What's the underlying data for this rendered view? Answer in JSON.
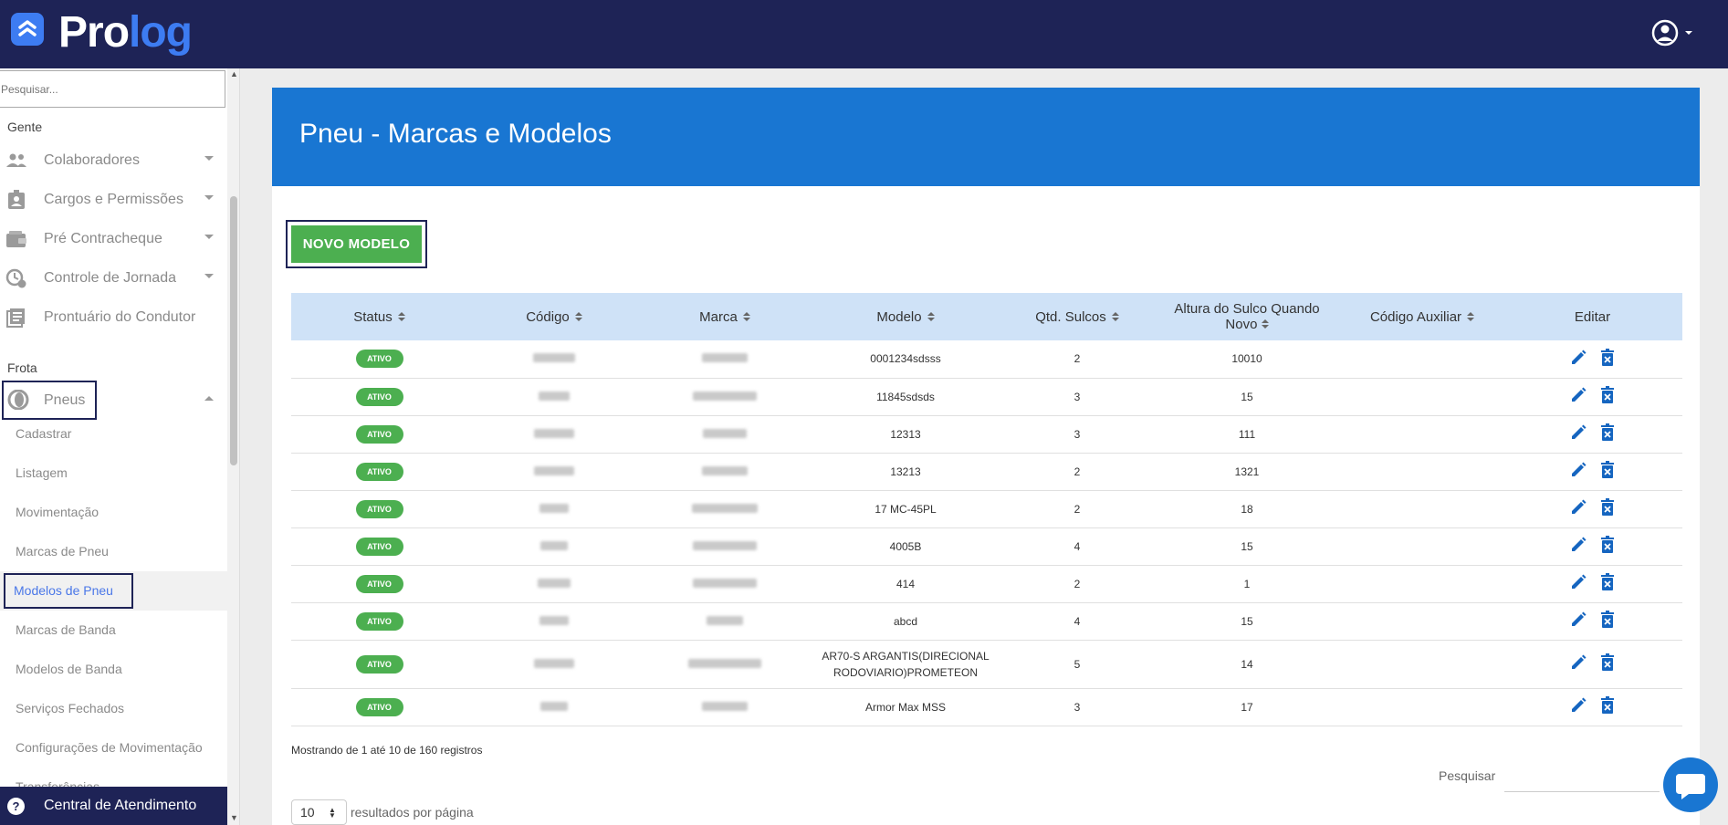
{
  "app": {
    "logo_pro": "Pro",
    "logo_log": "log"
  },
  "sidebar": {
    "search_placeholder": "Pesquisar...",
    "section_gente": "Gente",
    "gente_items": [
      {
        "label": "Colaboradores",
        "icon": "people-icon"
      },
      {
        "label": "Cargos e Permissões",
        "icon": "badge-icon"
      },
      {
        "label": "Pré Contracheque",
        "icon": "wallet-icon"
      },
      {
        "label": "Controle de Jornada",
        "icon": "clock-icon"
      },
      {
        "label": "Prontuário do Condutor",
        "icon": "document-icon"
      }
    ],
    "section_frota": "Frota",
    "pneus_label": "Pneus",
    "pneus_subitems": [
      "Cadastrar",
      "Listagem",
      "Movimentação",
      "Marcas de Pneu",
      "Modelos de Pneu",
      "Marcas de Banda",
      "Modelos de Banda",
      "Serviços Fechados",
      "Configurações de Movimentação",
      "Transferências"
    ],
    "active_subitem": "Modelos de Pneu",
    "help_label": "Central de Atendimento"
  },
  "main": {
    "title": "Pneu - Marcas e Modelos",
    "new_button": "NOVO MODELO",
    "columns": [
      "Status",
      "Código",
      "Marca",
      "Modelo",
      "Qtd. Sulcos",
      "Altura do Sulco Quando Novo",
      "Código Auxiliar",
      "Editar"
    ],
    "status_label": "ATIVO",
    "rows": [
      {
        "modelo": "0001234sdsss",
        "sulcos": "2",
        "altura": "10010"
      },
      {
        "modelo": "11845sdsds",
        "sulcos": "3",
        "altura": "15"
      },
      {
        "modelo": "12313",
        "sulcos": "3",
        "altura": "111"
      },
      {
        "modelo": "13213",
        "sulcos": "2",
        "altura": "1321"
      },
      {
        "modelo": "17 MC-45PL",
        "sulcos": "2",
        "altura": "18"
      },
      {
        "modelo": "4005B",
        "sulcos": "4",
        "altura": "15"
      },
      {
        "modelo": "414",
        "sulcos": "2",
        "altura": "1"
      },
      {
        "modelo": "abcd",
        "sulcos": "4",
        "altura": "15"
      },
      {
        "modelo": "AR70-S ARGANTIS(DIRECIONAL RODOVIARIO)PROMETEON",
        "sulcos": "5",
        "altura": "14"
      },
      {
        "modelo": "Armor Max MSS",
        "sulcos": "3",
        "altura": "17"
      }
    ],
    "info": "Mostrando de 1 até 10 de 160 registros",
    "search_label": "Pesquisar",
    "page_size": "10",
    "per_page_label": "resultados por página"
  },
  "colors": {
    "topbar": "#1e2356",
    "header": "#1976d2",
    "active_badge": "#4caf50",
    "accent": "#4a77e8"
  }
}
